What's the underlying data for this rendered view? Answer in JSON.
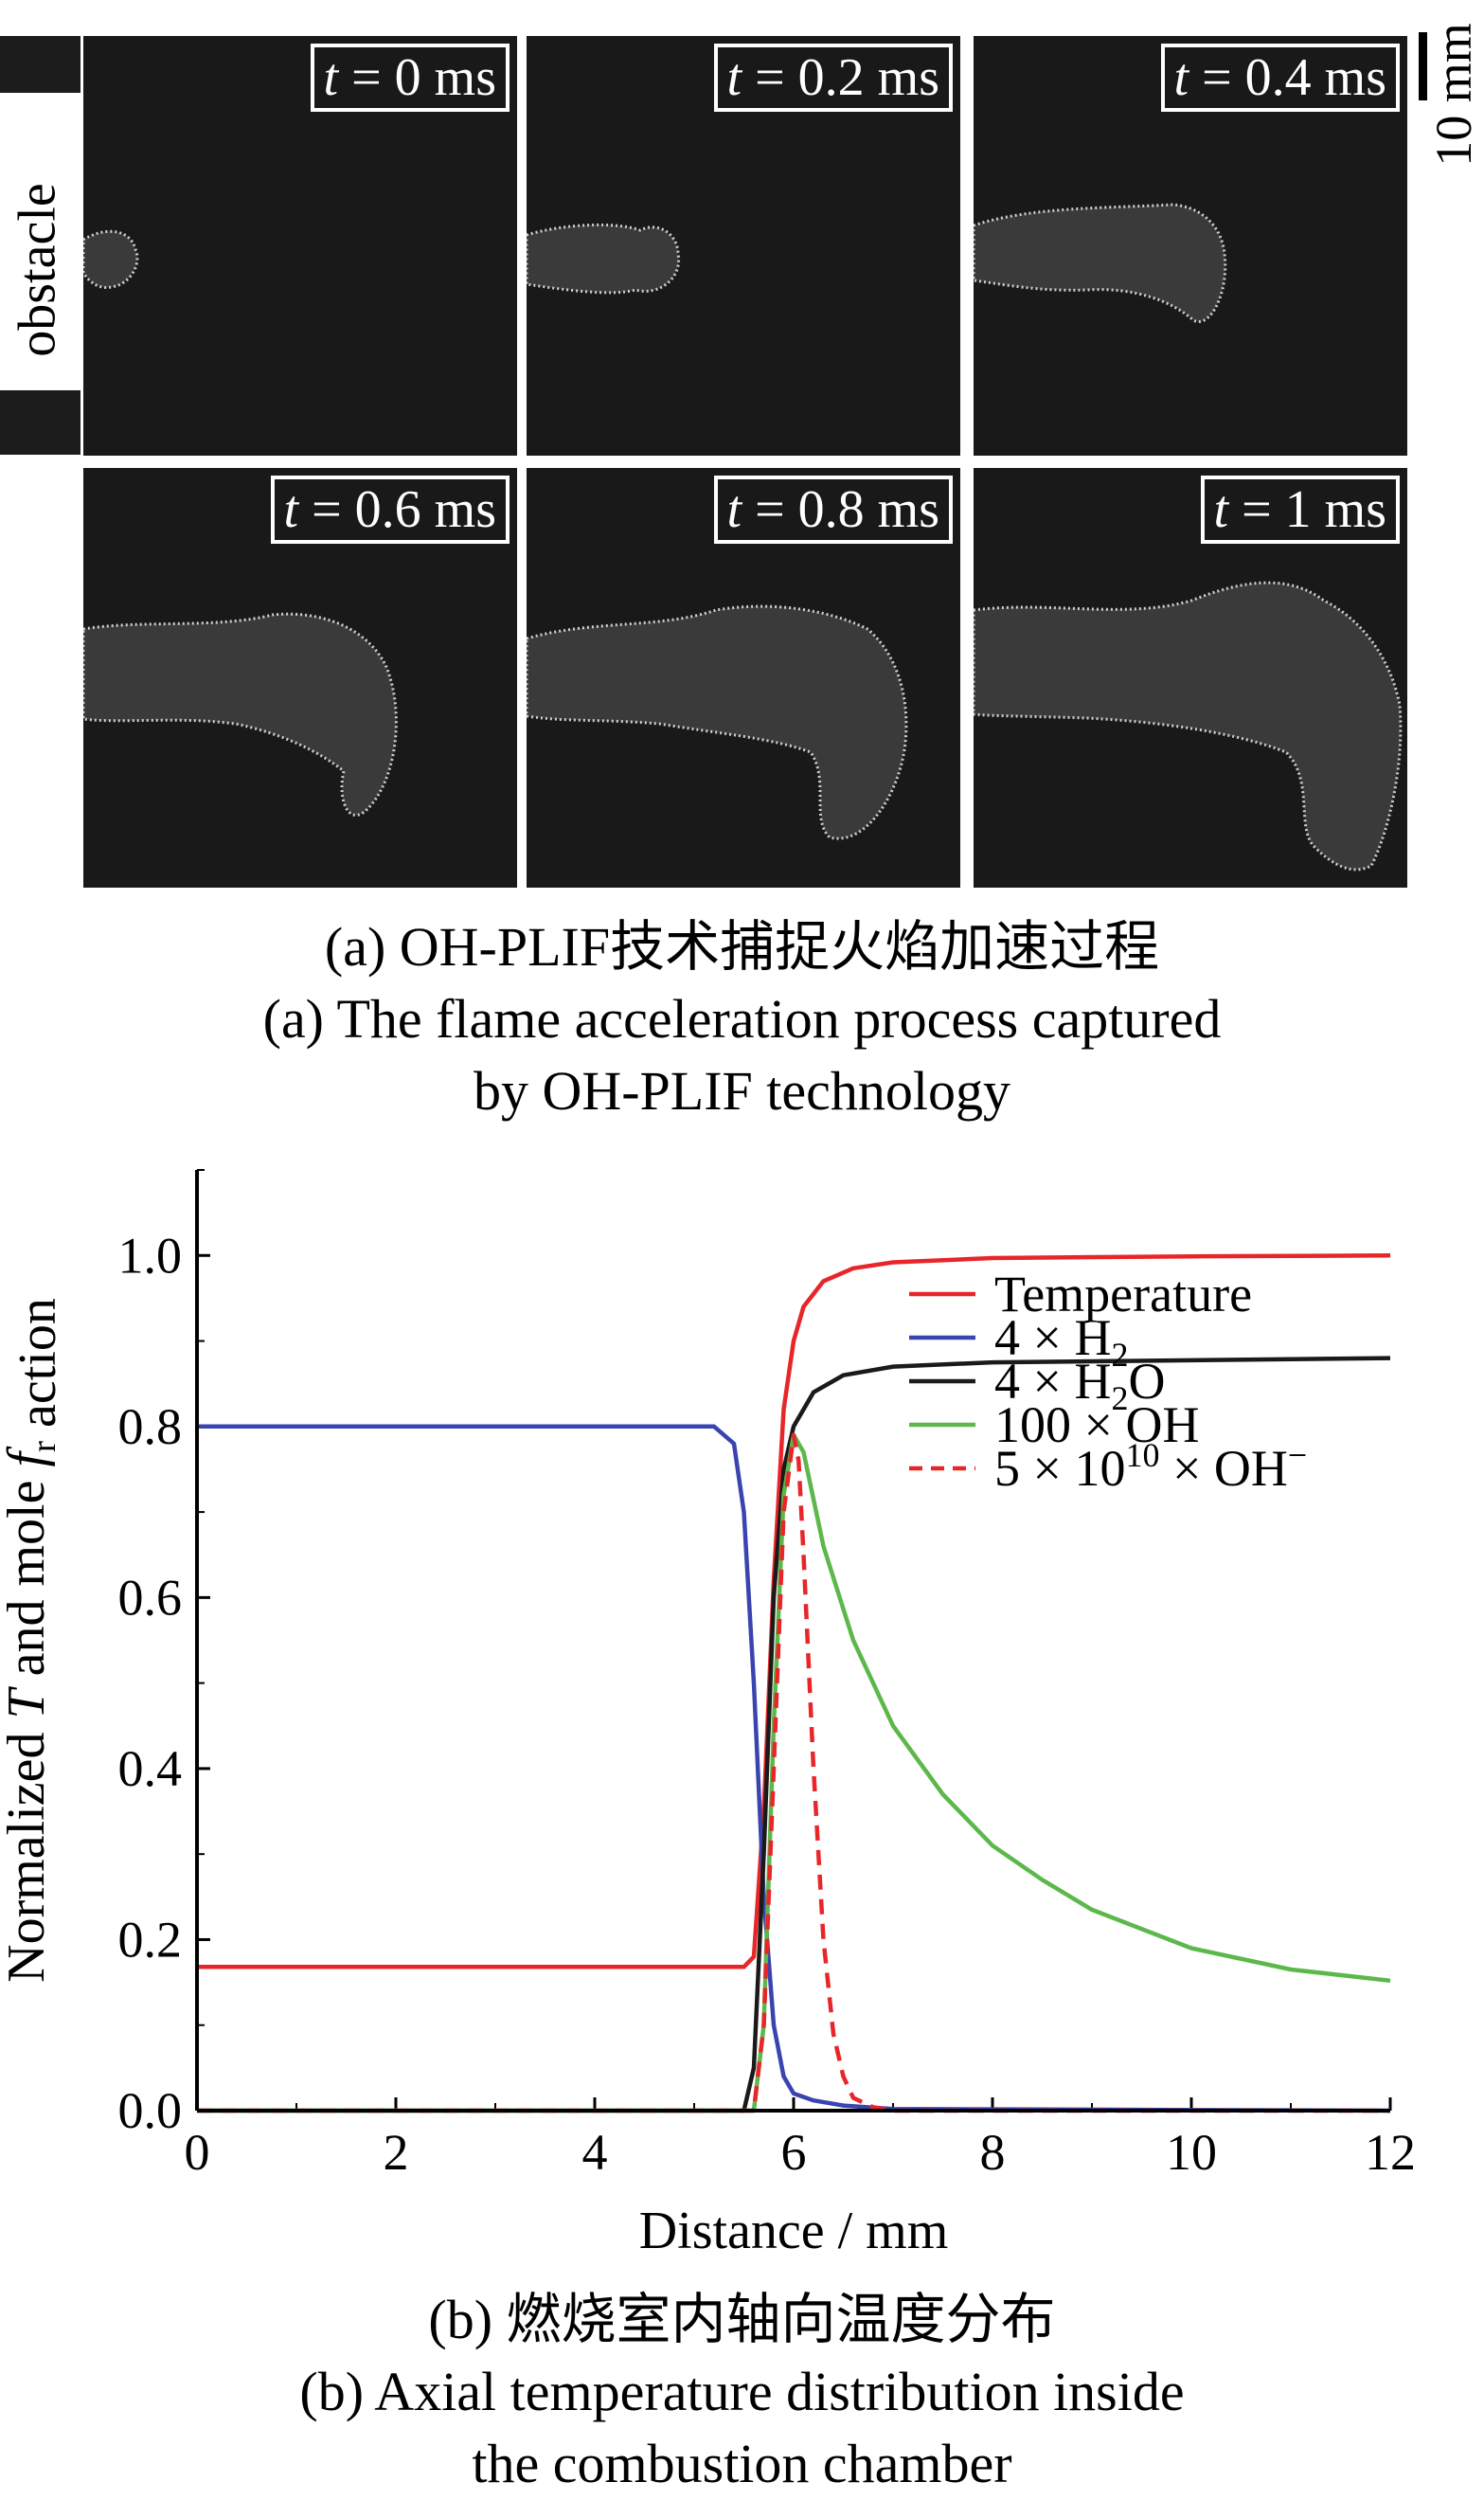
{
  "panel_a": {
    "obstacle_label": "obstacle",
    "scale_label": "10 mm",
    "frames": [
      {
        "var": "t",
        "rest": " = 0 ms"
      },
      {
        "var": "t",
        "rest": " = 0.2 ms"
      },
      {
        "var": "t",
        "rest": " = 0.4 ms"
      },
      {
        "var": "t",
        "rest": " = 0.6 ms"
      },
      {
        "var": "t",
        "rest": " = 0.8 ms"
      },
      {
        "var": "t",
        "rest": " = 1 ms"
      }
    ],
    "caption_cn": "(a) OH-PLIF技术捕捉火焰加速过程",
    "caption_en_1": "(a) The flame acceleration process captured",
    "caption_en_2": "by OH-PLIF technology"
  },
  "panel_b": {
    "caption_cn": "(b) 燃烧室内轴向温度分布",
    "caption_en_1": "(b) Axial temperature distribution inside",
    "caption_en_2": "the combustion chamber"
  },
  "chart_data": {
    "type": "line",
    "xlabel": "Distance / mm",
    "ylabel": {
      "prefix": "Normalized ",
      "T": "T",
      "middle": " and mole ",
      "f": "f",
      "sub": "r",
      "suffix": " action"
    },
    "xlim": [
      0,
      12
    ],
    "ylim": [
      0,
      1.1
    ],
    "xticks": [
      "0",
      "2",
      "4",
      "6",
      "8",
      "10",
      "12"
    ],
    "yticks": [
      "0.0",
      "0.2",
      "0.4",
      "0.6",
      "0.8",
      "1.0"
    ],
    "legend_position": "right",
    "series": [
      {
        "name": "Temperature",
        "legend": {
          "main": "Temperature"
        },
        "color": "#e8262a",
        "dashed": false,
        "x": [
          0,
          5.5,
          5.6,
          5.7,
          5.8,
          5.9,
          6.0,
          6.1,
          6.3,
          6.6,
          7.0,
          8.0,
          10.0,
          12.0
        ],
        "y": [
          0.168,
          0.168,
          0.18,
          0.35,
          0.62,
          0.82,
          0.9,
          0.94,
          0.97,
          0.985,
          0.992,
          0.997,
          0.999,
          1.0
        ]
      },
      {
        "name": "4 × H2",
        "legend": {
          "main": "4 × H",
          "sub": "2"
        },
        "color": "#3a44b0",
        "dashed": false,
        "x": [
          0,
          5.2,
          5.4,
          5.5,
          5.6,
          5.7,
          5.8,
          5.9,
          6.0,
          6.2,
          6.5,
          7.0,
          12.0
        ],
        "y": [
          0.8,
          0.8,
          0.78,
          0.7,
          0.5,
          0.25,
          0.1,
          0.04,
          0.02,
          0.012,
          0.006,
          0.002,
          0.0
        ]
      },
      {
        "name": "4 × H2O",
        "legend": {
          "main": "4 × H",
          "sub": "2",
          "tail": "O"
        },
        "color": "#1a1a1a",
        "dashed": false,
        "x": [
          0,
          5.5,
          5.6,
          5.7,
          5.8,
          5.9,
          6.0,
          6.2,
          6.5,
          7.0,
          8.0,
          12.0
        ],
        "y": [
          0.0,
          0.0,
          0.05,
          0.3,
          0.6,
          0.75,
          0.8,
          0.84,
          0.86,
          0.87,
          0.875,
          0.88
        ]
      },
      {
        "name": "100 × OH",
        "legend": {
          "main": "100 × OH"
        },
        "color": "#5cb84a",
        "dashed": false,
        "x": [
          0,
          5.6,
          5.7,
          5.8,
          5.9,
          6.0,
          6.1,
          6.3,
          6.6,
          7.0,
          7.5,
          8.0,
          8.5,
          9.0,
          10.0,
          11.0,
          12.0
        ],
        "y": [
          0.0,
          0.0,
          0.1,
          0.45,
          0.72,
          0.79,
          0.77,
          0.66,
          0.55,
          0.45,
          0.37,
          0.31,
          0.27,
          0.235,
          0.19,
          0.165,
          0.152
        ]
      },
      {
        "name": "5 × 10^10 × OH-",
        "legend": {
          "main": "5 × 10",
          "sup": "10",
          "tail": " × OH",
          "sup2": "−"
        },
        "color": "#e8262a",
        "dashed": true,
        "x": [
          0,
          5.6,
          5.7,
          5.8,
          5.9,
          6.0,
          6.05,
          6.1,
          6.2,
          6.3,
          6.4,
          6.5,
          6.6,
          6.8,
          7.0,
          12.0
        ],
        "y": [
          0.0,
          0.0,
          0.1,
          0.4,
          0.7,
          0.79,
          0.76,
          0.65,
          0.4,
          0.2,
          0.09,
          0.04,
          0.015,
          0.004,
          0.0,
          0.0
        ]
      }
    ]
  }
}
